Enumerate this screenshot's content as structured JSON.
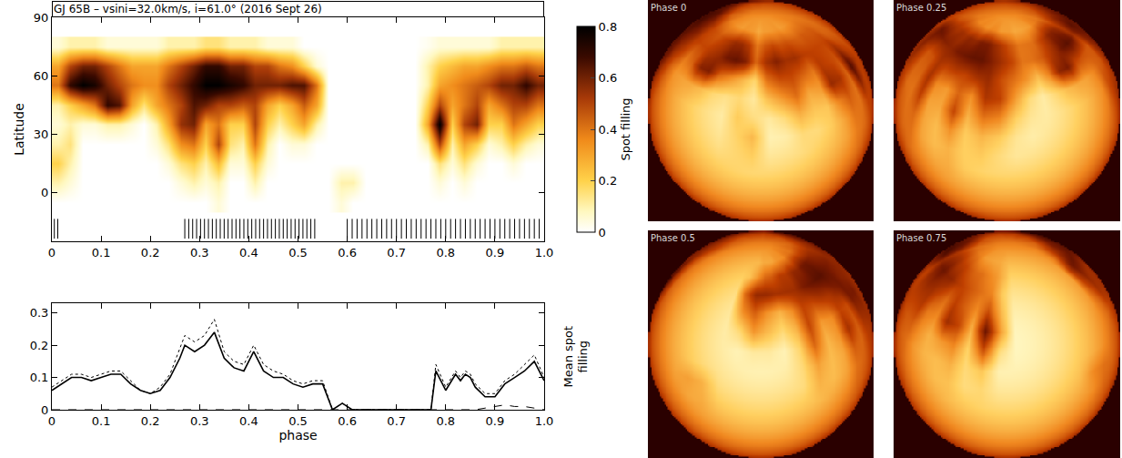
{
  "chart_data": [
    {
      "type": "heatmap",
      "title": "GJ 65B – vsini=32.0km/s, i=61.0° (2016 Sept 26)",
      "ylabel": "Latitude",
      "x": [
        0.0125,
        0.0375,
        0.0625,
        0.0875,
        0.1125,
        0.1375,
        0.1625,
        0.1875,
        0.2125,
        0.2375,
        0.2625,
        0.2875,
        0.3125,
        0.3375,
        0.3625,
        0.3875,
        0.4125,
        0.4375,
        0.4625,
        0.4875,
        0.5125,
        0.5375,
        0.5625,
        0.5875,
        0.6125,
        0.6375,
        0.6625,
        0.6875,
        0.7125,
        0.7375,
        0.7625,
        0.7875,
        0.8125,
        0.8375,
        0.8625,
        0.8875,
        0.9125,
        0.9375,
        0.9625,
        0.9875
      ],
      "y": [
        -5,
        5,
        15,
        25,
        35,
        45,
        55,
        65,
        75
      ],
      "cells": [
        [
          0,
          0,
          0,
          0,
          0,
          0,
          0,
          0,
          0,
          0,
          0,
          0,
          0,
          0.05,
          0,
          0,
          0,
          0,
          0,
          0,
          0,
          0,
          0,
          0.05,
          0,
          0,
          0,
          0,
          0,
          0,
          0,
          0,
          0,
          0,
          0,
          0,
          0,
          0,
          0,
          0
        ],
        [
          0.1,
          0.05,
          0,
          0,
          0,
          0,
          0,
          0,
          0,
          0,
          0.05,
          0.1,
          0.05,
          0.1,
          0,
          0,
          0.1,
          0,
          0,
          0,
          0,
          0,
          0,
          0.1,
          0.1,
          0,
          0,
          0,
          0,
          0,
          0,
          0.05,
          0,
          0.05,
          0,
          0,
          0,
          0,
          0,
          0
        ],
        [
          0.2,
          0.1,
          0,
          0,
          0,
          0,
          0,
          0,
          0,
          0.05,
          0.15,
          0.2,
          0.1,
          0.25,
          0.05,
          0.05,
          0.2,
          0.05,
          0,
          0,
          0,
          0,
          0,
          0,
          0,
          0,
          0,
          0,
          0,
          0,
          0,
          0.15,
          0.05,
          0.15,
          0.05,
          0,
          0,
          0.05,
          0,
          0
        ],
        [
          0.1,
          0.15,
          0,
          0,
          0,
          0,
          0,
          0,
          0.05,
          0.15,
          0.35,
          0.4,
          0.2,
          0.5,
          0.15,
          0.1,
          0.4,
          0.1,
          0,
          0.05,
          0.05,
          0,
          0,
          0,
          0,
          0,
          0,
          0,
          0,
          0,
          0.1,
          0.5,
          0.1,
          0.3,
          0.2,
          0.05,
          0.1,
          0.2,
          0.1,
          0.05
        ],
        [
          0.05,
          0.1,
          0.05,
          0.05,
          0.1,
          0.1,
          0.05,
          0,
          0.1,
          0.3,
          0.55,
          0.6,
          0.3,
          0.4,
          0.2,
          0.2,
          0.5,
          0.2,
          0.1,
          0.2,
          0.3,
          0.1,
          0,
          0,
          0,
          0,
          0,
          0,
          0,
          0,
          0.3,
          0.8,
          0.2,
          0.5,
          0.6,
          0.2,
          0.2,
          0.4,
          0.3,
          0.2
        ],
        [
          0.1,
          0.2,
          0.3,
          0.4,
          0.7,
          0.65,
          0.3,
          0.15,
          0.3,
          0.4,
          0.5,
          0.65,
          0.6,
          0.5,
          0.5,
          0.45,
          0.5,
          0.3,
          0.2,
          0.3,
          0.45,
          0.3,
          0,
          0,
          0,
          0,
          0,
          0,
          0,
          0,
          0.2,
          0.5,
          0.3,
          0.4,
          0.5,
          0.3,
          0.4,
          0.5,
          0.5,
          0.4
        ],
        [
          0.4,
          0.7,
          0.8,
          0.75,
          0.6,
          0.5,
          0.4,
          0.35,
          0.35,
          0.5,
          0.6,
          0.7,
          0.8,
          0.8,
          0.75,
          0.7,
          0.6,
          0.6,
          0.6,
          0.65,
          0.65,
          0.4,
          0,
          0,
          0,
          0,
          0,
          0,
          0,
          0,
          0.1,
          0.3,
          0.35,
          0.4,
          0.45,
          0.5,
          0.6,
          0.6,
          0.7,
          0.6
        ],
        [
          0.3,
          0.5,
          0.6,
          0.6,
          0.5,
          0.4,
          0.3,
          0.3,
          0.3,
          0.4,
          0.5,
          0.6,
          0.7,
          0.7,
          0.6,
          0.6,
          0.5,
          0.5,
          0.4,
          0.35,
          0.2,
          0.05,
          0,
          0,
          0,
          0,
          0,
          0,
          0,
          0,
          0.1,
          0.2,
          0.25,
          0.3,
          0.3,
          0.35,
          0.4,
          0.4,
          0.45,
          0.4
        ],
        [
          0.05,
          0.1,
          0.1,
          0.1,
          0.05,
          0.05,
          0.05,
          0.05,
          0.05,
          0.1,
          0.1,
          0.1,
          0.15,
          0.15,
          0.1,
          0.1,
          0.1,
          0.05,
          0.05,
          0.05,
          0,
          0,
          0,
          0,
          0,
          0,
          0,
          0,
          0,
          0,
          0.02,
          0.05,
          0.05,
          0.05,
          0.05,
          0.05,
          0.1,
          0.1,
          0.1,
          0.1
        ]
      ],
      "xlim": [
        0,
        1
      ],
      "ylim": [
        -25,
        90
      ],
      "xticks": [
        0,
        0.1,
        0.2,
        0.3,
        0.4,
        0.5,
        0.6,
        0.7,
        0.8,
        0.9,
        {
          "value": 1,
          "label": "1.0"
        }
      ],
      "yticks": [
        0,
        30,
        60,
        90
      ],
      "colorbar": {
        "label": "Spot filling",
        "range": [
          0,
          0.8
        ],
        "ticks": [
          0,
          0.2,
          0.4,
          0.6,
          0.8
        ]
      },
      "observation_phases": [
        0.005,
        0.012,
        0.27,
        0.278,
        0.286,
        0.294,
        0.302,
        0.31,
        0.318,
        0.326,
        0.334,
        0.342,
        0.35,
        0.358,
        0.366,
        0.374,
        0.382,
        0.39,
        0.398,
        0.406,
        0.414,
        0.422,
        0.43,
        0.438,
        0.446,
        0.454,
        0.462,
        0.47,
        0.478,
        0.486,
        0.494,
        0.502,
        0.51,
        0.518,
        0.526,
        0.534,
        0.6,
        0.61,
        0.62,
        0.63,
        0.64,
        0.65,
        0.66,
        0.67,
        0.68,
        0.69,
        0.7,
        0.71,
        0.72,
        0.73,
        0.74,
        0.75,
        0.76,
        0.77,
        0.78,
        0.79,
        0.8,
        0.81,
        0.82,
        0.83,
        0.84,
        0.85,
        0.86,
        0.87,
        0.88,
        0.89,
        0.9,
        0.91,
        0.92,
        0.93,
        0.94,
        0.95,
        0.96,
        0.97,
        0.98,
        0.99
      ]
    },
    {
      "type": "line",
      "xlabel": "phase",
      "ylabel": "Mean spot filling",
      "x": [
        0,
        0.02,
        0.04,
        0.06,
        0.08,
        0.1,
        0.12,
        0.14,
        0.16,
        0.18,
        0.2,
        0.22,
        0.24,
        0.26,
        0.27,
        0.29,
        0.31,
        0.33,
        0.35,
        0.37,
        0.39,
        0.41,
        0.43,
        0.45,
        0.47,
        0.49,
        0.51,
        0.53,
        0.55,
        0.57,
        0.59,
        0.61,
        0.65,
        0.7,
        0.75,
        0.77,
        0.78,
        0.8,
        0.82,
        0.83,
        0.84,
        0.85,
        0.86,
        0.88,
        0.9,
        0.92,
        0.94,
        0.96,
        0.98,
        1.0
      ],
      "series": [
        {
          "color": "#000000",
          "line_style": "solid",
          "values": [
            0.06,
            0.08,
            0.1,
            0.1,
            0.09,
            0.1,
            0.11,
            0.11,
            0.08,
            0.06,
            0.05,
            0.06,
            0.1,
            0.16,
            0.2,
            0.18,
            0.2,
            0.24,
            0.16,
            0.13,
            0.12,
            0.18,
            0.12,
            0.1,
            0.1,
            0.08,
            0.07,
            0.08,
            0.08,
            0,
            0.02,
            0,
            0,
            0,
            0,
            0,
            0.12,
            0.06,
            0.11,
            0.09,
            0.11,
            0.1,
            0.07,
            0.04,
            0.04,
            0.08,
            0.1,
            0.12,
            0.15,
            0.09
          ]
        },
        {
          "color": "#000000",
          "line_style": "dotted",
          "values": [
            0.07,
            0.09,
            0.11,
            0.11,
            0.1,
            0.11,
            0.12,
            0.12,
            0.09,
            0.06,
            0.05,
            0.07,
            0.11,
            0.19,
            0.23,
            0.21,
            0.23,
            0.28,
            0.18,
            0.15,
            0.14,
            0.2,
            0.14,
            0.12,
            0.11,
            0.09,
            0.08,
            0.09,
            0.09,
            0,
            0.02,
            0,
            0,
            0,
            0,
            0,
            0.14,
            0.07,
            0.12,
            0.1,
            0.12,
            0.11,
            0.08,
            0.05,
            0.05,
            0.09,
            0.11,
            0.14,
            0.17,
            0.1
          ]
        },
        {
          "color": "#000000",
          "line_style": "dashed",
          "values": [
            0,
            0,
            0,
            0,
            0,
            0,
            0,
            0,
            0,
            0,
            0,
            0,
            0,
            0,
            0,
            0,
            0,
            0,
            0,
            0,
            0,
            0,
            0,
            0,
            0,
            0,
            0,
            0,
            0,
            0,
            0,
            0,
            0,
            0,
            0,
            0,
            0,
            0,
            0,
            0,
            0,
            0,
            0,
            0.005,
            0.01,
            0.015,
            0.01,
            0.01,
            0.005,
            0
          ]
        }
      ],
      "xlim": [
        0,
        1
      ],
      "ylim": [
        0,
        0.33
      ],
      "xticks": [
        0,
        0.1,
        0.2,
        0.3,
        0.4,
        0.5,
        0.6,
        0.7,
        0.8,
        0.9,
        {
          "value": 1,
          "label": "1.0"
        }
      ],
      "yticks": [
        0,
        0.1,
        0.2,
        0.3
      ]
    },
    {
      "type": "image",
      "inclination": 61.0,
      "panels": [
        {
          "label": "Phase 0",
          "phase": 0
        },
        {
          "label": "Phase 0.25",
          "phase": 0.25
        },
        {
          "label": "Phase 0.5",
          "phase": 0.5
        },
        {
          "label": "Phase 0.75",
          "phase": 0.75
        }
      ]
    }
  ]
}
